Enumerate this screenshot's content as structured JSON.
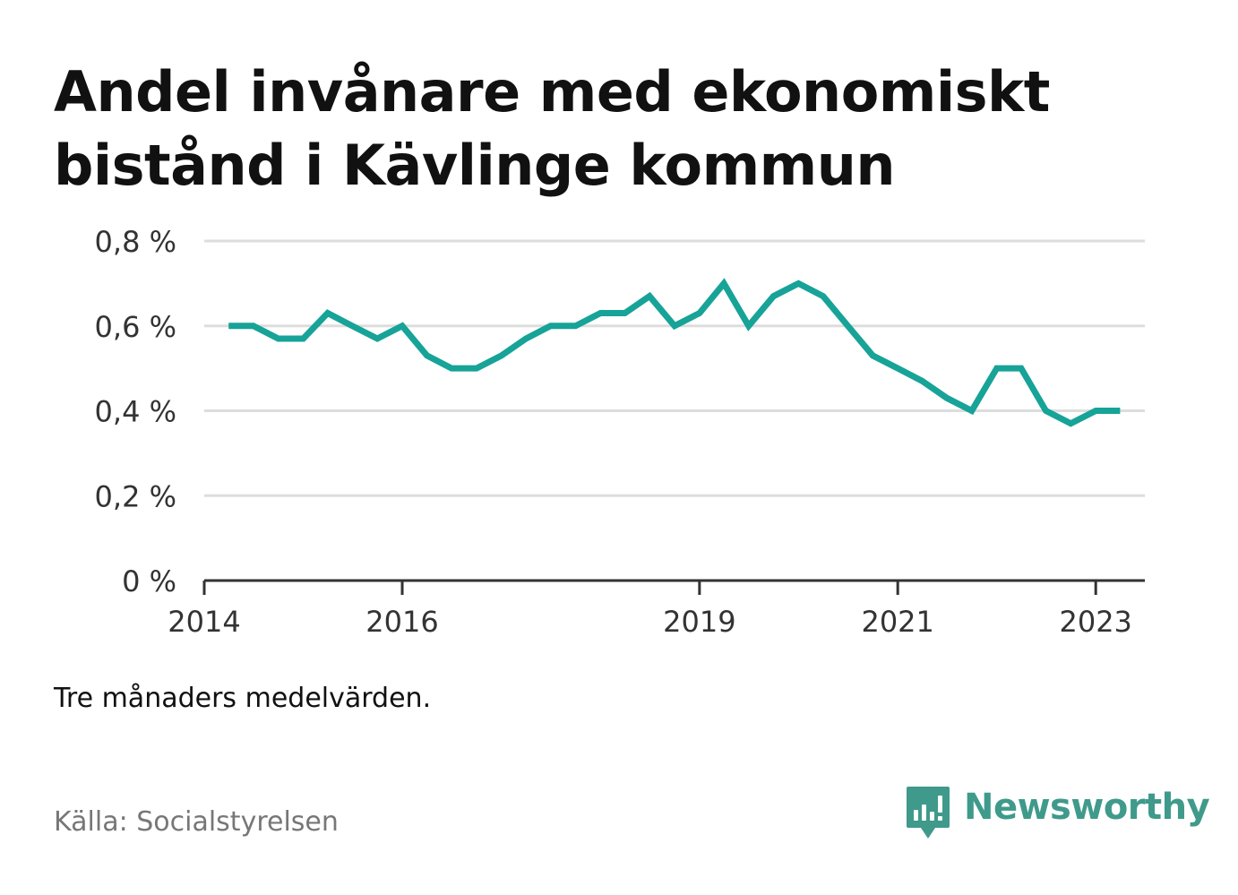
{
  "title_lines": [
    "Andel invånare med ekonomiskt",
    "bistånd i Kävlinge kommun"
  ],
  "note": "Tre månaders medelvärden.",
  "source": "Källa: Socialstyrelsen",
  "brand": {
    "name": "Newsworthy",
    "icon": "newsworthy-logo-icon",
    "color": "#3f9a8b"
  },
  "colors": {
    "line": "#17a398",
    "grid": "#dddddd",
    "axis": "#333333"
  },
  "chart_data": {
    "type": "line",
    "title": "Andel invånare med ekonomiskt bistånd i Kävlinge kommun",
    "xlabel": "",
    "ylabel": "",
    "y_unit": "%",
    "ylim": [
      0,
      0.8
    ],
    "yticks": [
      0,
      0.2,
      0.4,
      0.6,
      0.8
    ],
    "ytick_labels": [
      "0 %",
      "0,2 %",
      "0,4 %",
      "0,6 %",
      "0,8 %"
    ],
    "xlim": [
      "2014-01-01",
      "2023-07-01"
    ],
    "xticks": [
      "2014-01-01",
      "2016-01-01",
      "2019-01-01",
      "2021-01-01",
      "2023-01-01"
    ],
    "xtick_labels": [
      "2014",
      "2016",
      "2019",
      "2021",
      "2023"
    ],
    "grid": true,
    "series": [
      {
        "x": [
          "2014-04",
          "2014-07",
          "2014-10",
          "2015-01",
          "2015-04",
          "2015-07",
          "2015-10",
          "2016-01",
          "2016-04",
          "2016-07",
          "2016-10",
          "2017-01",
          "2017-04",
          "2017-07",
          "2017-10",
          "2018-01",
          "2018-04",
          "2018-07",
          "2018-10",
          "2019-01",
          "2019-04",
          "2019-07",
          "2019-10",
          "2020-01",
          "2020-04",
          "2020-07",
          "2020-10",
          "2021-01",
          "2021-04",
          "2021-07",
          "2021-10",
          "2022-01",
          "2022-04",
          "2022-07",
          "2022-10",
          "2023-01",
          "2023-04"
        ],
        "values": [
          0.6,
          0.6,
          0.57,
          0.57,
          0.63,
          0.6,
          0.57,
          0.6,
          0.53,
          0.5,
          0.5,
          0.53,
          0.57,
          0.6,
          0.6,
          0.63,
          0.63,
          0.67,
          0.6,
          0.63,
          0.7,
          0.6,
          0.67,
          0.7,
          0.67,
          0.6,
          0.53,
          0.5,
          0.47,
          0.43,
          0.4,
          0.5,
          0.5,
          0.4,
          0.37,
          0.4,
          0.4
        ]
      }
    ]
  }
}
